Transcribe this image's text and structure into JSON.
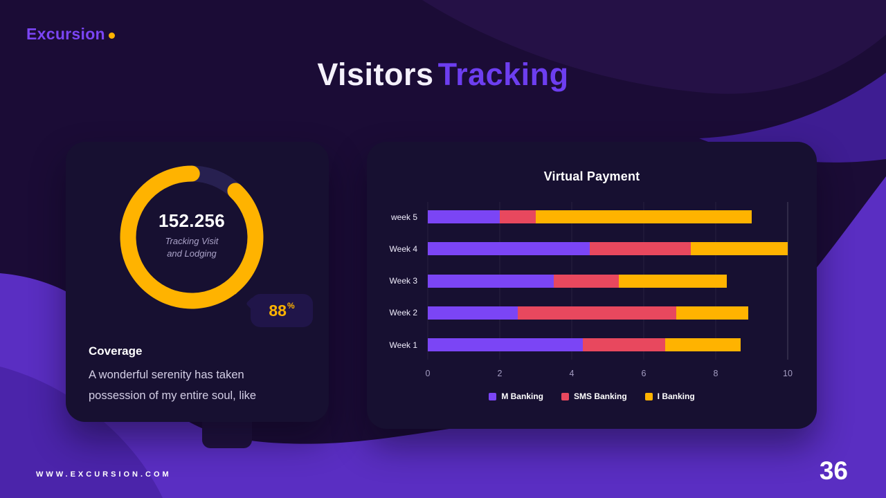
{
  "logo": {
    "text": "Excursion",
    "dot_color": "#ffb300"
  },
  "title": {
    "part1": "Visitors",
    "part2": "Tracking",
    "accent_color": "#6d3ef0"
  },
  "coverage_card": {
    "heading": "Coverage",
    "body_line1": "A wonderful serenity has taken",
    "body_line2": "possession of my entire soul, like",
    "metric_value": "152.256",
    "metric_label_line1": "Tracking Visit",
    "metric_label_line2": "and Lodging",
    "badge_value": "88",
    "badge_unit": "%"
  },
  "payment_card": {
    "title": "Virtual Payment"
  },
  "footer": {
    "website": "WWW.EXCURSION.COM",
    "page_number": "36"
  },
  "chart_data": [
    {
      "type": "pie",
      "subtype": "donut",
      "title": "Coverage",
      "labels": [
        "Coverage",
        "Remaining"
      ],
      "values": [
        88,
        12
      ],
      "colors": [
        "#ffb300",
        "#272050"
      ],
      "center_value": "152.256",
      "center_label": "Tracking Visit and Lodging",
      "annotation": "88%"
    },
    {
      "type": "bar",
      "orientation": "horizontal",
      "stacked": true,
      "title": "Virtual Payment",
      "categories": [
        "week 5",
        "Week 4",
        "Week 3",
        "Week 2",
        "Week 1"
      ],
      "series": [
        {
          "name": "M Banking",
          "color": "#7b45f5",
          "values": [
            2.0,
            4.5,
            3.5,
            2.5,
            4.3
          ]
        },
        {
          "name": "SMS Banking",
          "color": "#e8485e",
          "values": [
            1.0,
            2.8,
            1.8,
            4.4,
            2.3
          ]
        },
        {
          "name": "I Banking",
          "color": "#ffb300",
          "values": [
            6.0,
            2.7,
            3.0,
            2.0,
            2.1
          ]
        }
      ],
      "x_ticks": [
        0,
        2,
        4,
        6,
        8,
        10
      ],
      "xlim": [
        0,
        10
      ],
      "grid": true,
      "legend_position": "bottom"
    }
  ]
}
